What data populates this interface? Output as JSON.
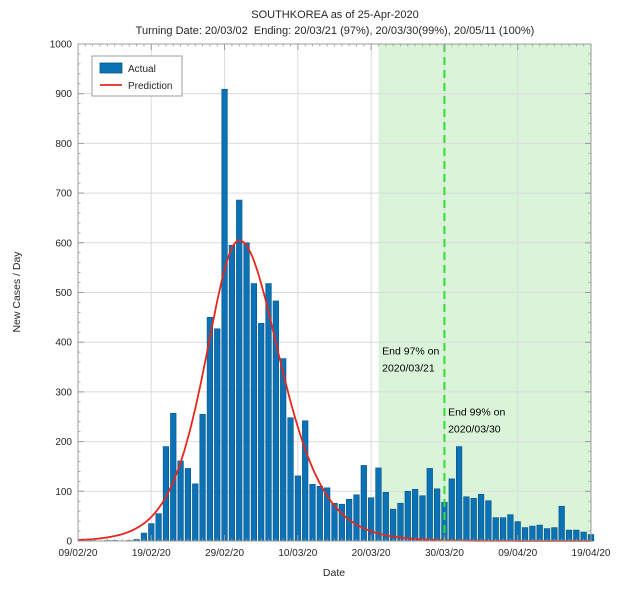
{
  "chart_data": {
    "type": "bar",
    "title": "SOUTHKOREA as of 25-Apr-2020",
    "subtitle": "Turning Date: 20/03/02  Ending: 20/03/21 (97%), 20/03/30(99%), 20/05/11 (100%)",
    "xlabel": "Date",
    "ylabel": "New Cases / Day",
    "ylim": [
      0,
      1000
    ],
    "y_ticks": [
      0,
      100,
      200,
      300,
      400,
      500,
      600,
      700,
      800,
      900,
      1000
    ],
    "x_ticks": [
      {
        "i": 0,
        "label": "09/02/20"
      },
      {
        "i": 10,
        "label": "19/02/20"
      },
      {
        "i": 20,
        "label": "29/02/20"
      },
      {
        "i": 30,
        "label": "10/03/20"
      },
      {
        "i": 40,
        "label": "20/03/20"
      },
      {
        "i": 50,
        "label": "30/03/20"
      },
      {
        "i": 60,
        "label": "09/04/20"
      },
      {
        "i": 70,
        "label": "19/04/20"
      }
    ],
    "categories": [
      "09/02",
      "10/02",
      "11/02",
      "12/02",
      "13/02",
      "14/02",
      "15/02",
      "16/02",
      "17/02",
      "18/02",
      "19/02",
      "20/02",
      "21/02",
      "22/02",
      "23/02",
      "24/02",
      "25/02",
      "26/02",
      "27/02",
      "28/02",
      "29/02",
      "01/03",
      "02/03",
      "03/03",
      "04/03",
      "05/03",
      "06/03",
      "07/03",
      "08/03",
      "09/03",
      "10/03",
      "11/03",
      "12/03",
      "13/03",
      "14/03",
      "15/03",
      "16/03",
      "17/03",
      "18/03",
      "19/03",
      "20/03",
      "21/03",
      "22/03",
      "23/03",
      "24/03",
      "25/03",
      "26/03",
      "27/03",
      "28/03",
      "29/03",
      "30/03",
      "31/03",
      "01/04",
      "02/04",
      "03/04",
      "04/04",
      "05/04",
      "06/04",
      "07/04",
      "08/04",
      "09/04",
      "10/04",
      "11/04",
      "12/04",
      "13/04",
      "14/04",
      "15/04",
      "16/04",
      "17/04",
      "18/04",
      "19/04"
    ],
    "series": [
      {
        "name": "Actual",
        "kind": "bar",
        "values": [
          0,
          0,
          1,
          0,
          1,
          1,
          0,
          1,
          3,
          16,
          35,
          55,
          190,
          257,
          161,
          146,
          115,
          255,
          450,
          427,
          909,
          595,
          686,
          600,
          518,
          438,
          518,
          483,
          367,
          248,
          131,
          242,
          114,
          110,
          107,
          76,
          74,
          84,
          93,
          152,
          87,
          147,
          98,
          64,
          76,
          100,
          104,
          91,
          146,
          105,
          78,
          125,
          190,
          89,
          86,
          94,
          81,
          47,
          47,
          53,
          39,
          27,
          30,
          32,
          25,
          27,
          70,
          22,
          22,
          18,
          13
        ]
      },
      {
        "name": "Prediction",
        "kind": "line",
        "model": "sech2",
        "peak": 605,
        "center_index": 22,
        "width_left": 6.2,
        "width_right": 7.5
      }
    ],
    "legend": {
      "position": "top-left",
      "entries": [
        "Actual",
        "Prediction"
      ]
    },
    "shade": {
      "start_label": "21/03/20",
      "start_index": 41,
      "color": "#d9f4d9"
    },
    "end_line": {
      "label": "30/03/20",
      "index": 50,
      "color": "#33dd33"
    },
    "annotations": [
      {
        "line1": "End 97% on",
        "line2": "2020/03/21",
        "x_index": 41.5,
        "y_value": 375
      },
      {
        "line1": "End 99% on",
        "line2": "2020/03/30",
        "x_index": 50.5,
        "y_value": 253
      }
    ],
    "colors": {
      "bar": "#0b72b5",
      "bar_edge": "#0a5387",
      "prediction": "#e3281e",
      "shade": "#d9f4d9",
      "end_line": "#33dd33",
      "grid": "#dcdcdc",
      "axis": "#9c9c9c",
      "text": "#262626"
    }
  }
}
